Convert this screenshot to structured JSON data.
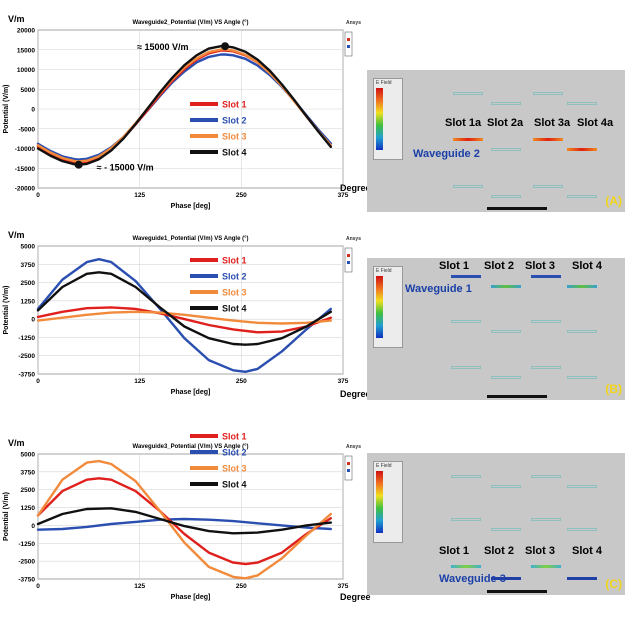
{
  "colors": {
    "slot1": "#e0201c",
    "slot2": "#2a4fb0",
    "slot3": "#f28a3c",
    "slot4": "#111111",
    "peach": "#f7b48c"
  },
  "legend": [
    "Slot 1",
    "Slot 2",
    "Slot 3",
    "Slot 4"
  ],
  "brand": "Ansys",
  "annotations": {
    "max": "≈ 15000 V/m",
    "min": "≈ - 15000 V/m"
  },
  "panels": [
    {
      "id": "A",
      "tag": "(A)",
      "ylabel_top": "V/m",
      "title": "Waveguide2_Potential (V/m) VS Angle (°)",
      "degree": "Degree",
      "waveguide_label": "Waveguide 2",
      "slot_labels": [
        "Slot 1a",
        "Slot 2a",
        "Slot 3a",
        "Slot 4a"
      ]
    },
    {
      "id": "B",
      "tag": "(B)",
      "ylabel_top": "V/m",
      "title": "Waveguide1_Potential (V/m) VS Angle (°)",
      "degree": "Degree",
      "waveguide_label": "Waveguide 1",
      "slot_labels": [
        "Slot 1",
        "Slot 2",
        "Slot 3",
        "Slot 4"
      ]
    },
    {
      "id": "C",
      "tag": "(C)",
      "ylabel_top": "V/m",
      "title": "Waveguide3_Potential (V/m) VS Angle (°)",
      "degree": "Degree",
      "waveguide_label": "Waveguide 3",
      "slot_labels": [
        "Slot 1",
        "Slot 2",
        "Slot 3",
        "Slot 4"
      ]
    }
  ],
  "chart_data": [
    {
      "type": "line",
      "title": "Waveguide2_Potential (V/m) VS Angle (°)",
      "xlabel": "Phase [deg]",
      "ylabel": "Potential (V/m)",
      "xlim": [
        0,
        375
      ],
      "ylim": [
        -20000,
        20000
      ],
      "xticks": [
        0,
        125,
        250,
        375
      ],
      "yticks": [
        -20000,
        -15000,
        -10000,
        -5000,
        0,
        5000,
        10000,
        15000,
        20000
      ],
      "grid": true,
      "legend_position": "center",
      "series": [
        {
          "name": "Slot 1",
          "color": "#e0201c",
          "x": [
            0,
            15,
            30,
            45,
            50,
            60,
            75,
            90,
            105,
            120,
            135,
            150,
            165,
            180,
            195,
            210,
            225,
            230,
            240,
            255,
            270,
            285,
            300,
            315,
            330,
            345,
            360
          ],
          "y": [
            -9500,
            -11200,
            -12700,
            -13500,
            -13600,
            -13400,
            -12300,
            -10200,
            -7400,
            -3900,
            -200,
            3600,
            7100,
            10100,
            12500,
            14100,
            14800,
            14800,
            14600,
            13600,
            11800,
            9200,
            5900,
            2100,
            -1800,
            -5700,
            -9300
          ]
        },
        {
          "name": "Slot 2",
          "color": "#2a4fb0",
          "x": [
            0,
            15,
            30,
            45,
            50,
            60,
            75,
            90,
            105,
            120,
            135,
            150,
            165,
            180,
            195,
            210,
            225,
            230,
            240,
            255,
            270,
            285,
            300,
            315,
            330,
            345,
            360
          ],
          "y": [
            -8800,
            -10600,
            -12000,
            -12700,
            -12800,
            -12600,
            -11600,
            -9700,
            -7100,
            -3800,
            -300,
            3300,
            6700,
            9500,
            11800,
            13200,
            13800,
            13800,
            13600,
            12700,
            11000,
            8600,
            5600,
            2100,
            -1600,
            -5300,
            -8700
          ]
        },
        {
          "name": "Slot 3",
          "color": "#f28a3c",
          "x": [
            0,
            15,
            30,
            45,
            50,
            60,
            75,
            90,
            105,
            120,
            135,
            150,
            165,
            180,
            195,
            210,
            225,
            230,
            240,
            255,
            270,
            285,
            300,
            315,
            330,
            345,
            360
          ],
          "y": [
            -9200,
            -11000,
            -12400,
            -13200,
            -13300,
            -13100,
            -12000,
            -9900,
            -7100,
            -3600,
            200,
            4000,
            7500,
            10500,
            12800,
            14400,
            15100,
            15100,
            14800,
            13700,
            11800,
            9100,
            5800,
            2000,
            -1900,
            -5700,
            -9200
          ]
        },
        {
          "name": "Slot 4",
          "color": "#111111",
          "x": [
            0,
            15,
            30,
            45,
            50,
            60,
            75,
            90,
            105,
            120,
            135,
            150,
            165,
            180,
            195,
            210,
            225,
            230,
            240,
            255,
            270,
            285,
            300,
            315,
            330,
            345,
            360
          ],
          "y": [
            -10000,
            -11800,
            -13200,
            -14000,
            -14100,
            -13900,
            -12700,
            -10500,
            -7500,
            -3800,
            200,
            4200,
            7900,
            11100,
            13600,
            15300,
            15900,
            15900,
            15600,
            14500,
            12500,
            9700,
            6200,
            2300,
            -1800,
            -5800,
            -9600
          ]
        }
      ],
      "markers": [
        {
          "x": 230,
          "y": 15900
        },
        {
          "x": 50,
          "y": -14100
        }
      ],
      "annotations": [
        "≈ 15000 V/m",
        "≈ - 15000 V/m"
      ]
    },
    {
      "type": "line",
      "title": "Waveguide1_Potential (V/m) VS Angle (°)",
      "xlabel": "Phase [deg]",
      "ylabel": "Potential (V/m)",
      "xlim": [
        0,
        375
      ],
      "ylim": [
        -3750,
        5000
      ],
      "xticks": [
        0,
        125,
        250,
        375
      ],
      "yticks": [
        -3750,
        -2500,
        -1250,
        0,
        1250,
        2500,
        3750,
        5000
      ],
      "grid": true,
      "legend_position": "center",
      "series": [
        {
          "name": "Slot 1",
          "color": "#e0201c",
          "x": [
            0,
            30,
            60,
            90,
            120,
            150,
            180,
            210,
            240,
            270,
            300,
            330,
            360
          ],
          "y": [
            150,
            500,
            750,
            800,
            700,
            400,
            0,
            -400,
            -700,
            -900,
            -850,
            -500,
            100
          ]
        },
        {
          "name": "Slot 2",
          "color": "#2a4fb0",
          "x": [
            0,
            30,
            60,
            75,
            90,
            120,
            150,
            180,
            210,
            240,
            255,
            270,
            300,
            330,
            360
          ],
          "y": [
            700,
            2700,
            3900,
            4100,
            3900,
            2600,
            700,
            -1300,
            -2800,
            -3500,
            -3600,
            -3400,
            -2200,
            -700,
            700
          ]
        },
        {
          "name": "Slot 3",
          "color": "#f28a3c",
          "x": [
            0,
            30,
            60,
            90,
            120,
            150,
            180,
            210,
            240,
            270,
            300,
            330,
            360
          ],
          "y": [
            -100,
            100,
            300,
            450,
            500,
            450,
            300,
            100,
            -100,
            -250,
            -300,
            -250,
            -100
          ]
        },
        {
          "name": "Slot 4",
          "color": "#111111",
          "x": [
            0,
            30,
            60,
            75,
            90,
            120,
            150,
            180,
            210,
            240,
            255,
            270,
            300,
            330,
            360
          ],
          "y": [
            600,
            2200,
            3100,
            3200,
            3100,
            2200,
            800,
            -500,
            -1300,
            -1700,
            -1750,
            -1700,
            -1300,
            -500,
            500
          ]
        }
      ]
    },
    {
      "type": "line",
      "title": "Waveguide3_Potential (V/m) VS Angle (°)",
      "xlabel": "Phase [deg]",
      "ylabel": "Potential (V/m)",
      "xlim": [
        0,
        375
      ],
      "ylim": [
        -3750,
        5000
      ],
      "xticks": [
        0,
        125,
        250,
        375
      ],
      "yticks": [
        -3750,
        -2500,
        -1250,
        0,
        1250,
        2500,
        3750,
        5000
      ],
      "grid": true,
      "legend_position": "center",
      "series": [
        {
          "name": "Slot 1",
          "color": "#e0201c",
          "x": [
            0,
            30,
            60,
            75,
            90,
            120,
            150,
            180,
            210,
            240,
            255,
            270,
            300,
            330,
            360
          ],
          "y": [
            700,
            2400,
            3200,
            3300,
            3200,
            2400,
            1000,
            -600,
            -1900,
            -2600,
            -2700,
            -2600,
            -1900,
            -600,
            500
          ]
        },
        {
          "name": "Slot 2",
          "color": "#2a4fb0",
          "x": [
            0,
            30,
            60,
            90,
            120,
            150,
            180,
            210,
            240,
            270,
            300,
            330,
            360
          ],
          "y": [
            -300,
            -250,
            -100,
            100,
            250,
            400,
            450,
            400,
            300,
            150,
            0,
            -150,
            -250
          ]
        },
        {
          "name": "Slot 3",
          "color": "#f28a3c",
          "x": [
            0,
            30,
            60,
            75,
            90,
            120,
            150,
            180,
            210,
            240,
            255,
            270,
            300,
            330,
            360
          ],
          "y": [
            700,
            3200,
            4400,
            4500,
            4300,
            3100,
            1000,
            -1200,
            -2900,
            -3600,
            -3700,
            -3500,
            -2300,
            -700,
            800
          ]
        },
        {
          "name": "Slot 4",
          "color": "#111111",
          "x": [
            0,
            30,
            60,
            90,
            120,
            150,
            180,
            210,
            240,
            270,
            300,
            330,
            360
          ],
          "y": [
            100,
            800,
            1150,
            1200,
            950,
            450,
            -50,
            -400,
            -550,
            -500,
            -300,
            0,
            200
          ]
        }
      ]
    }
  ]
}
